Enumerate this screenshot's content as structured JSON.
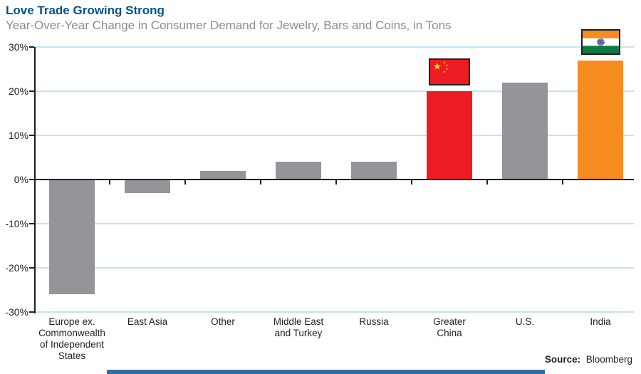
{
  "title": "Love Trade Growing Strong",
  "subtitle": "Year-Over-Year Change in Consumer Demand for Jewelry, Bars and Coins, in Tons",
  "source": {
    "label": "Source:",
    "value": "Bloomberg"
  },
  "colors": {
    "title_blue": "#00528c",
    "subtitle_gray": "#8a8d8f",
    "bar_gray": "#939598",
    "bar_red": "#ed1c24",
    "bar_orange": "#f68b1f",
    "gridline_blue": "#c5e3f2",
    "axis_dark": "#231f20",
    "flag_star_yellow": "#ffde00",
    "india_saffron": "#f68b1f",
    "india_green": "#0e7a44",
    "india_navy": "#283c8e",
    "bottom_rule_blue": "#2f6fa7"
  },
  "chart_data": {
    "type": "bar",
    "title": "Love Trade Growing Strong",
    "subtitle": "Year-Over-Year Change in Consumer Demand for Jewelry, Bars and Coins, in Tons",
    "categories": [
      "Europe ex.\nCommonwealth\nof Independent\nStates",
      "East Asia",
      "Other",
      "Middle East\nand Turkey",
      "Russia",
      "Greater\nChina",
      "U.S.",
      "India"
    ],
    "values": [
      -26,
      -3,
      2,
      4,
      4,
      20,
      22,
      27
    ],
    "unit": "%",
    "bar_colors": [
      "gray",
      "gray",
      "gray",
      "gray",
      "gray",
      "red",
      "gray",
      "orange"
    ],
    "flags": [
      "",
      "",
      "",
      "",
      "",
      "china",
      "",
      "india"
    ],
    "xlabel": "",
    "ylabel": "",
    "ylim": [
      -30,
      30
    ],
    "ytick_values": [
      30,
      20,
      10,
      0,
      -10,
      -20,
      -30
    ],
    "ytick_labels": [
      "30%",
      "20%",
      "10%",
      "0%",
      "-10%",
      "-20%",
      "-30%"
    ],
    "grid": true,
    "legend": false,
    "source": "Bloomberg"
  }
}
